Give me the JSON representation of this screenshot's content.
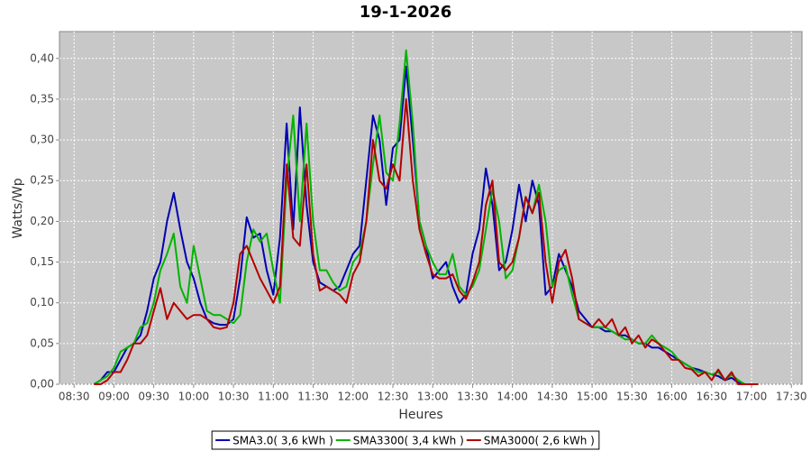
{
  "chart_data": {
    "type": "line",
    "title": "19-1-2026",
    "x_label": "Heures",
    "y_label": "Watts/Wp",
    "grid": true,
    "legend": "bottom",
    "xlim": [
      "08:19",
      "17:38"
    ],
    "xticks": [
      "08:30",
      "09:00",
      "09:30",
      "10:00",
      "10:30",
      "11:00",
      "11:30",
      "12:00",
      "12:30",
      "13:00",
      "13:30",
      "14:00",
      "14:30",
      "15:00",
      "15:30",
      "16:00",
      "16:30",
      "17:00",
      "17:30"
    ],
    "ylim": [
      0,
      0.433
    ],
    "yticks": [
      {
        "value": 0,
        "label": "0,00"
      },
      {
        "value": 0.05,
        "label": "0,05"
      },
      {
        "value": 0.1,
        "label": "0,10"
      },
      {
        "value": 0.15,
        "label": "0,15"
      },
      {
        "value": 0.2,
        "label": "0,20"
      },
      {
        "value": 0.25,
        "label": "0,25"
      },
      {
        "value": 0.3,
        "label": "0,30"
      },
      {
        "value": 0.35,
        "label": "0,35"
      },
      {
        "value": 0.4,
        "label": "0,40"
      }
    ],
    "x": [
      "08:45",
      "08:50",
      "08:55",
      "09:00",
      "09:05",
      "09:10",
      "09:15",
      "09:20",
      "09:25",
      "09:30",
      "09:35",
      "09:40",
      "09:45",
      "09:50",
      "09:55",
      "10:00",
      "10:05",
      "10:10",
      "10:15",
      "10:20",
      "10:25",
      "10:30",
      "10:35",
      "10:40",
      "10:45",
      "10:50",
      "10:55",
      "11:00",
      "11:05",
      "11:10",
      "11:15",
      "11:20",
      "11:25",
      "11:30",
      "11:35",
      "11:40",
      "11:45",
      "11:50",
      "11:55",
      "12:00",
      "12:05",
      "12:10",
      "12:15",
      "12:20",
      "12:25",
      "12:30",
      "12:35",
      "12:40",
      "12:45",
      "12:50",
      "12:55",
      "13:00",
      "13:05",
      "13:10",
      "13:15",
      "13:20",
      "13:25",
      "13:30",
      "13:35",
      "13:40",
      "13:45",
      "13:50",
      "13:55",
      "14:00",
      "14:05",
      "14:10",
      "14:15",
      "14:20",
      "14:25",
      "14:30",
      "14:35",
      "14:40",
      "14:45",
      "14:50",
      "14:55",
      "15:00",
      "15:05",
      "15:10",
      "15:15",
      "15:20",
      "15:25",
      "15:30",
      "15:35",
      "15:40",
      "15:45",
      "15:50",
      "15:55",
      "16:00",
      "16:05",
      "16:10",
      "16:15",
      "16:20",
      "16:25",
      "16:30",
      "16:35",
      "16:40",
      "16:45",
      "16:50",
      "16:55",
      "17:00",
      "17:05"
    ],
    "series": [
      {
        "name": "SMA3.0( 3,6 kWh )",
        "color": "#0000b4",
        "values": [
          0.0,
          0.005,
          0.015,
          0.015,
          0.03,
          0.045,
          0.05,
          0.06,
          0.09,
          0.13,
          0.15,
          0.2,
          0.235,
          0.19,
          0.15,
          0.13,
          0.1,
          0.08,
          0.075,
          0.073,
          0.073,
          0.08,
          0.13,
          0.205,
          0.18,
          0.185,
          0.14,
          0.11,
          0.18,
          0.32,
          0.19,
          0.34,
          0.22,
          0.15,
          0.125,
          0.12,
          0.115,
          0.12,
          0.14,
          0.16,
          0.17,
          0.25,
          0.33,
          0.3,
          0.22,
          0.29,
          0.3,
          0.39,
          0.3,
          0.2,
          0.17,
          0.13,
          0.14,
          0.15,
          0.12,
          0.1,
          0.11,
          0.16,
          0.19,
          0.265,
          0.22,
          0.14,
          0.15,
          0.19,
          0.245,
          0.2,
          0.25,
          0.22,
          0.11,
          0.12,
          0.16,
          0.14,
          0.12,
          0.09,
          0.08,
          0.07,
          0.07,
          0.065,
          0.065,
          0.06,
          0.06,
          0.055,
          0.05,
          0.05,
          0.045,
          0.045,
          0.04,
          0.035,
          0.03,
          0.025,
          0.02,
          0.018,
          0.015,
          0.012,
          0.01,
          0.005,
          0.008,
          0.002,
          0.0,
          0.0,
          0.0
        ]
      },
      {
        "name": "SMA3300( 3,4 kWh )",
        "color": "#00b400",
        "values": [
          0.0,
          0.005,
          0.01,
          0.02,
          0.04,
          0.045,
          0.05,
          0.07,
          0.075,
          0.1,
          0.14,
          0.16,
          0.185,
          0.12,
          0.1,
          0.17,
          0.13,
          0.09,
          0.085,
          0.085,
          0.08,
          0.075,
          0.085,
          0.15,
          0.19,
          0.175,
          0.185,
          0.14,
          0.1,
          0.25,
          0.33,
          0.2,
          0.32,
          0.2,
          0.14,
          0.14,
          0.125,
          0.115,
          0.12,
          0.15,
          0.16,
          0.2,
          0.27,
          0.33,
          0.26,
          0.25,
          0.32,
          0.41,
          0.32,
          0.2,
          0.17,
          0.15,
          0.135,
          0.135,
          0.16,
          0.12,
          0.11,
          0.12,
          0.14,
          0.19,
          0.24,
          0.2,
          0.13,
          0.14,
          0.18,
          0.23,
          0.21,
          0.245,
          0.2,
          0.12,
          0.14,
          0.145,
          0.11,
          0.08,
          0.075,
          0.07,
          0.07,
          0.07,
          0.065,
          0.06,
          0.055,
          0.055,
          0.05,
          0.05,
          0.06,
          0.05,
          0.045,
          0.04,
          0.03,
          0.025,
          0.02,
          0.015,
          0.015,
          0.012,
          0.015,
          0.005,
          0.012,
          0.005,
          0.0,
          0.0,
          0.0
        ]
      },
      {
        "name": "SMA3000( 2,6 kWh )",
        "color": "#b40000",
        "values": [
          0.0,
          0.0,
          0.005,
          0.015,
          0.015,
          0.03,
          0.05,
          0.05,
          0.06,
          0.09,
          0.118,
          0.08,
          0.1,
          0.09,
          0.08,
          0.085,
          0.085,
          0.08,
          0.07,
          0.068,
          0.07,
          0.1,
          0.16,
          0.17,
          0.15,
          0.13,
          0.115,
          0.1,
          0.12,
          0.27,
          0.18,
          0.17,
          0.27,
          0.16,
          0.115,
          0.12,
          0.115,
          0.11,
          0.1,
          0.135,
          0.15,
          0.2,
          0.3,
          0.25,
          0.24,
          0.27,
          0.25,
          0.35,
          0.25,
          0.19,
          0.16,
          0.135,
          0.13,
          0.13,
          0.135,
          0.115,
          0.105,
          0.125,
          0.15,
          0.22,
          0.25,
          0.15,
          0.14,
          0.15,
          0.18,
          0.23,
          0.21,
          0.235,
          0.15,
          0.1,
          0.15,
          0.165,
          0.13,
          0.08,
          0.075,
          0.07,
          0.08,
          0.07,
          0.08,
          0.06,
          0.07,
          0.05,
          0.06,
          0.045,
          0.055,
          0.05,
          0.04,
          0.03,
          0.03,
          0.02,
          0.018,
          0.01,
          0.015,
          0.005,
          0.018,
          0.005,
          0.015,
          0.0,
          0.0,
          0.0,
          0.0
        ]
      }
    ]
  }
}
